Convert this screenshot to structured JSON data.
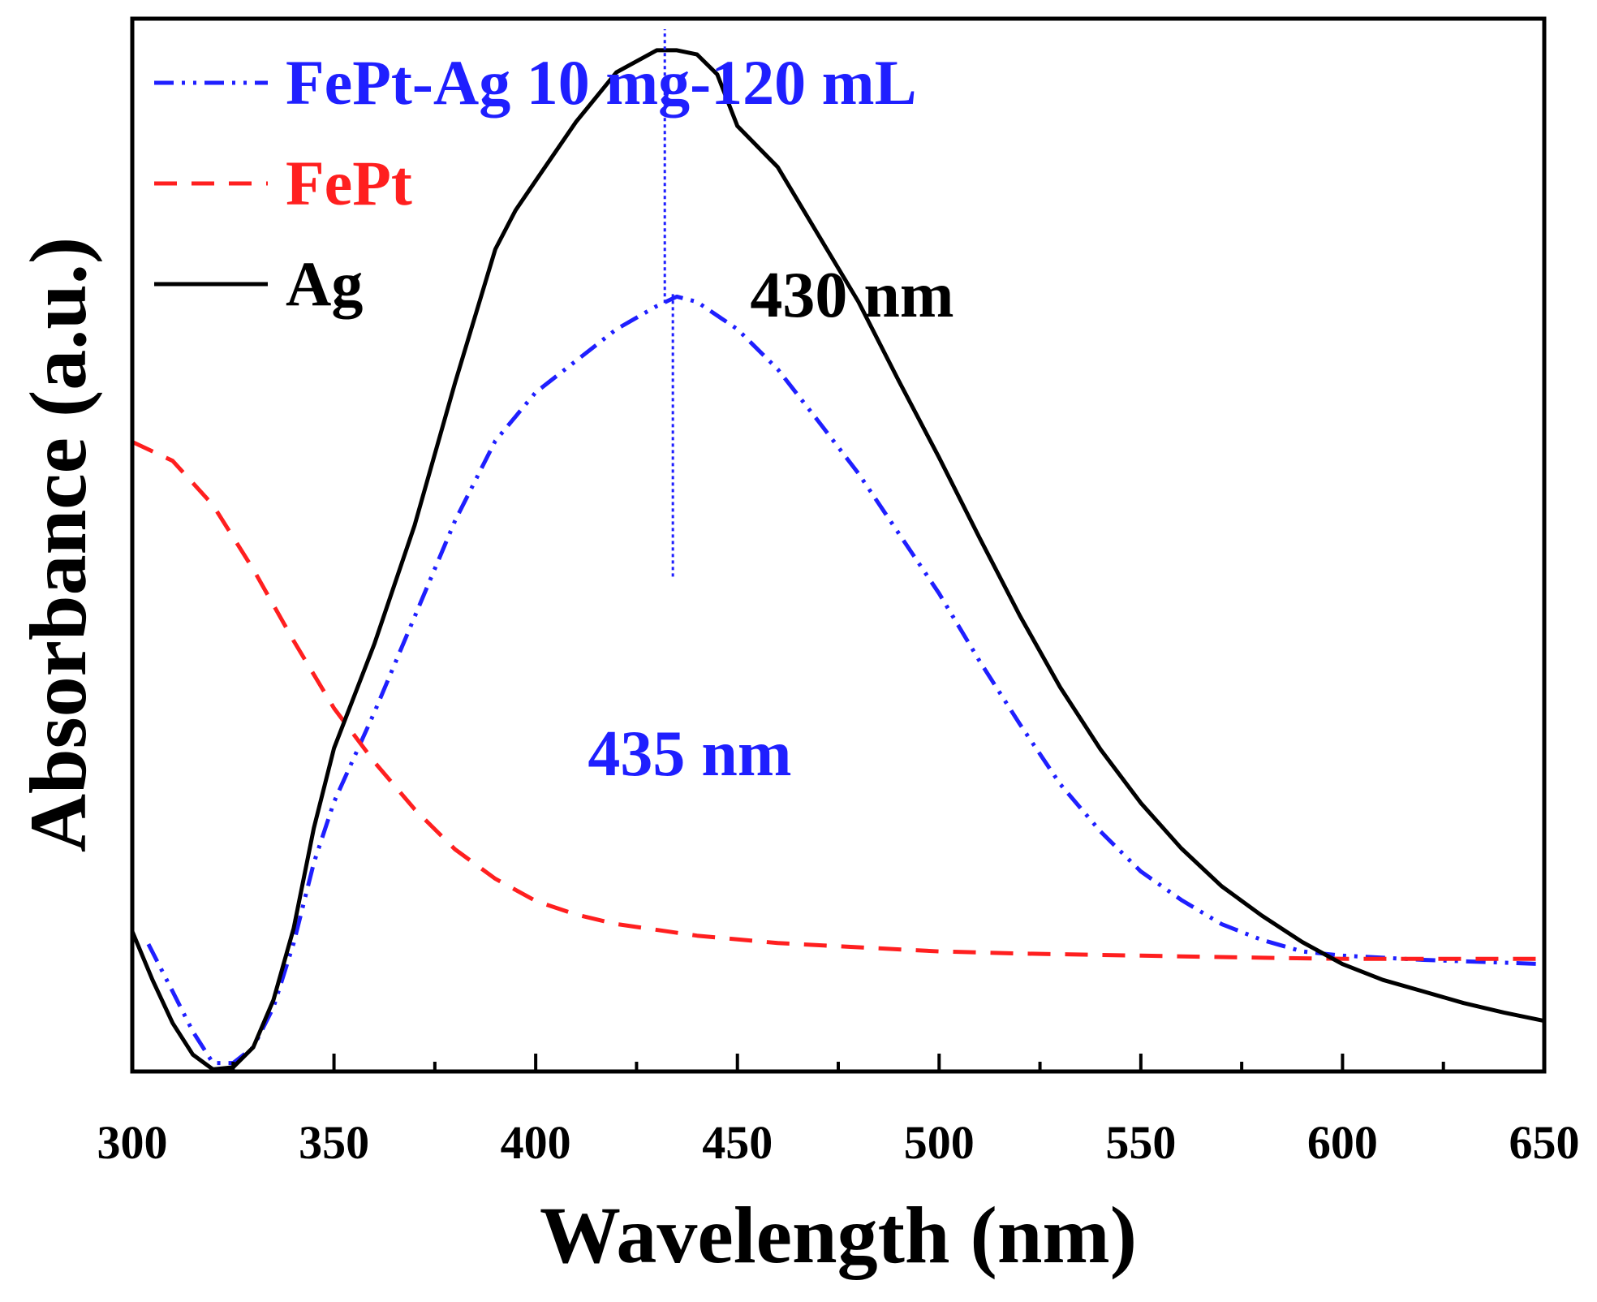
{
  "chart_data": {
    "type": "line",
    "title": "",
    "xlabel": "Wavelength (nm)",
    "ylabel": "Absorbance (a.u.)",
    "xlim": [
      300,
      650
    ],
    "ylim": [
      0,
      1
    ],
    "xticks": [
      300,
      350,
      400,
      450,
      500,
      550,
      600,
      650
    ],
    "xtick_labels": [
      "300",
      "350",
      "400",
      "450",
      "500",
      "550",
      "600",
      "650"
    ],
    "yticks_shown": false,
    "legend_position": "top-left",
    "series": [
      {
        "name": "FePt-Ag 10 mg-120 mL",
        "color": "#1f1fff",
        "style": "dash-dot-dot",
        "x": [
          304,
          310,
          315,
          320,
          325,
          330,
          335,
          340,
          345,
          350,
          360,
          370,
          380,
          390,
          400,
          410,
          420,
          430,
          435,
          440,
          450,
          460,
          470,
          480,
          490,
          500,
          510,
          520,
          530,
          540,
          550,
          560,
          570,
          580,
          590,
          600,
          620,
          650
        ],
        "y": [
          0.121,
          0.076,
          0.038,
          0.008,
          0.008,
          0.023,
          0.061,
          0.122,
          0.198,
          0.256,
          0.341,
          0.432,
          0.523,
          0.599,
          0.645,
          0.675,
          0.705,
          0.727,
          0.736,
          0.731,
          0.705,
          0.667,
          0.618,
          0.568,
          0.511,
          0.454,
          0.39,
          0.33,
          0.273,
          0.228,
          0.19,
          0.163,
          0.14,
          0.125,
          0.114,
          0.11,
          0.106,
          0.102
        ]
      },
      {
        "name": "FePt",
        "color": "#ff1f1f",
        "style": "dashed",
        "x": [
          300,
          310,
          320,
          330,
          340,
          350,
          360,
          370,
          380,
          390,
          400,
          410,
          420,
          440,
          460,
          480,
          500,
          520,
          550,
          580,
          600,
          620,
          650
        ],
        "y": [
          0.598,
          0.58,
          0.538,
          0.477,
          0.409,
          0.345,
          0.294,
          0.249,
          0.211,
          0.183,
          0.162,
          0.149,
          0.14,
          0.129,
          0.122,
          0.118,
          0.114,
          0.112,
          0.11,
          0.108,
          0.107,
          0.107,
          0.107
        ]
      },
      {
        "name": "Ag",
        "color": "#000000",
        "style": "solid",
        "x": [
          300,
          305,
          310,
          315,
          320,
          325,
          330,
          335,
          340,
          345,
          350,
          360,
          370,
          380,
          390,
          395,
          400,
          410,
          420,
          430,
          435,
          440,
          445,
          450,
          460,
          470,
          480,
          490,
          500,
          510,
          520,
          530,
          540,
          550,
          560,
          570,
          580,
          590,
          600,
          610,
          620,
          630,
          640,
          650
        ],
        "y": [
          0.133,
          0.087,
          0.046,
          0.016,
          0.002,
          0.004,
          0.023,
          0.068,
          0.136,
          0.231,
          0.307,
          0.406,
          0.519,
          0.654,
          0.781,
          0.818,
          0.846,
          0.902,
          0.949,
          0.97,
          0.97,
          0.966,
          0.947,
          0.898,
          0.859,
          0.795,
          0.731,
          0.656,
          0.583,
          0.507,
          0.433,
          0.365,
          0.306,
          0.255,
          0.212,
          0.176,
          0.148,
          0.123,
          0.102,
          0.087,
          0.076,
          0.065,
          0.056,
          0.048
        ]
      }
    ],
    "annotations": [
      {
        "text": "430 nm",
        "x": 432,
        "color": "#000000",
        "marker_color": "#1f1fff",
        "marker_y": [
          0.73,
          0.99
        ]
      },
      {
        "text": "435 nm",
        "x": 434,
        "color": "#1f1fff",
        "marker_color": "#1f1fff",
        "marker_y": [
          0.47,
          0.74
        ]
      }
    ]
  }
}
